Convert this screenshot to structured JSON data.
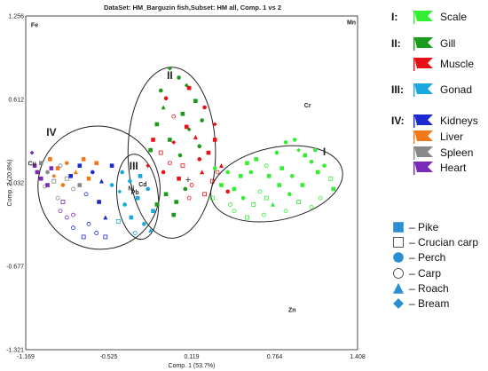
{
  "chart_data": {
    "type": "scatter",
    "title": "DataSet: HM_Barguzin fish,Subset: HM all, Comp. 1 vs 2",
    "xlabel": "Comp. 1 (53.7%)",
    "ylabel": "Comp. 2 (20.8%)",
    "xlim": [
      -1.169,
      1.408
    ],
    "ylim": [
      -1.321,
      1.256
    ],
    "x_ticks": [
      "-1.169",
      "-0.525",
      "0.119",
      "0.764",
      "1.408"
    ],
    "y_ticks": [
      "1.256",
      "0.612",
      "-0.032",
      "-0.677",
      "-1.321"
    ],
    "grid": false,
    "origin_marker": "+",
    "variables": [
      {
        "name": "Fe",
        "x": -1.1,
        "y": 1.17
      },
      {
        "name": "Mn",
        "x": 1.36,
        "y": 1.19
      },
      {
        "name": "Cr",
        "x": 1.02,
        "y": 0.55
      },
      {
        "name": "Cu",
        "x": -1.12,
        "y": 0.1
      },
      {
        "name": "Ni",
        "x": -0.35,
        "y": -0.09
      },
      {
        "name": "Pb",
        "x": -0.32,
        "y": -0.12
      },
      {
        "name": "Cd",
        "x": -0.26,
        "y": -0.06
      },
      {
        "name": "Zn",
        "x": 0.9,
        "y": -1.03
      }
    ],
    "clusters": [
      {
        "label": "I",
        "cx": 0.78,
        "cy": -0.04,
        "rx": 0.52,
        "ry": 0.28,
        "rot": -12,
        "lx": 1.15,
        "ly": 0.18
      },
      {
        "label": "II",
        "cx": -0.035,
        "cy": 0.2,
        "rx": 0.34,
        "ry": 0.66,
        "rot": 0,
        "lx": -0.05,
        "ly": 0.77
      },
      {
        "label": "III",
        "cx": -0.3,
        "cy": -0.14,
        "rx": 0.16,
        "ry": 0.33,
        "rot": -6,
        "lx": -0.33,
        "ly": 0.07
      },
      {
        "label": "IV",
        "cx": -0.6,
        "cy": -0.07,
        "rx": 0.47,
        "ry": 0.48,
        "rot": -35,
        "lx": -0.97,
        "ly": 0.33
      }
    ],
    "legend": {
      "groups": [
        {
          "roman": "I:",
          "items": [
            {
              "name": "Scale",
              "color": "#33ee33"
            }
          ]
        },
        {
          "roman": "II:",
          "items": [
            {
              "name": "Gill",
              "color": "#1a9a1a"
            },
            {
              "name": "Muscle",
              "color": "#e8111a"
            }
          ]
        },
        {
          "roman": "III:",
          "items": [
            {
              "name": "Gonad",
              "color": "#1aa8dd"
            }
          ]
        },
        {
          "roman": "IV:",
          "items": [
            {
              "name": "Kidneys",
              "color": "#1a2ad0"
            },
            {
              "name": "Liver",
              "color": "#f07818"
            },
            {
              "name": "Spleen",
              "color": "#888888"
            },
            {
              "name": "Heart",
              "color": "#7a2ab8"
            }
          ]
        }
      ],
      "species": [
        {
          "name": "– Pike",
          "shape": "square",
          "filled": true
        },
        {
          "name": "– Crucian carp",
          "shape": "square",
          "filled": false
        },
        {
          "name": "– Perch",
          "shape": "circle",
          "filled": true
        },
        {
          "name": "– Carp",
          "shape": "circle",
          "filled": false
        },
        {
          "name": "– Roach",
          "shape": "triangle",
          "filled": true
        },
        {
          "name": "– Bream",
          "shape": "diamond",
          "filled": true
        }
      ],
      "species_color": "#2a8ed0"
    },
    "series": [
      {
        "tissue": "Scale",
        "color": "#33ee33",
        "points": [
          [
            0.55,
            0.12,
            "s",
            1
          ],
          [
            0.62,
            0.15,
            "s",
            1
          ],
          [
            0.7,
            0.1,
            "c",
            0
          ],
          [
            0.78,
            0.2,
            "c",
            1
          ],
          [
            0.85,
            0.28,
            "c",
            1
          ],
          [
            0.92,
            0.3,
            "c",
            1
          ],
          [
            0.95,
            0.22,
            "d",
            1
          ],
          [
            1.0,
            0.18,
            "s",
            1
          ],
          [
            1.05,
            0.13,
            "c",
            1
          ],
          [
            1.1,
            0.05,
            "s",
            1
          ],
          [
            1.15,
            0.1,
            "c",
            1
          ],
          [
            1.2,
            0.0,
            "s",
            0
          ],
          [
            1.22,
            -0.08,
            "s",
            1
          ],
          [
            1.12,
            -0.15,
            "c",
            0
          ],
          [
            1.05,
            -0.22,
            "c",
            0
          ],
          [
            0.95,
            -0.18,
            "s",
            0
          ],
          [
            0.88,
            -0.12,
            "c",
            1
          ],
          [
            0.8,
            -0.05,
            "s",
            1
          ],
          [
            0.72,
            0.02,
            "s",
            1
          ],
          [
            0.65,
            -0.1,
            "c",
            0
          ],
          [
            0.6,
            -0.2,
            "s",
            0
          ],
          [
            0.52,
            -0.15,
            "c",
            1
          ],
          [
            0.45,
            -0.08,
            "s",
            1
          ],
          [
            0.4,
            0.05,
            "c",
            1
          ],
          [
            0.35,
            -0.05,
            "s",
            1
          ],
          [
            0.3,
            0.08,
            "c",
            1
          ],
          [
            0.28,
            -0.15,
            "s",
            0
          ],
          [
            0.45,
            -0.25,
            "c",
            0
          ],
          [
            0.55,
            -0.3,
            "s",
            0
          ],
          [
            0.68,
            -0.28,
            "c",
            0
          ],
          [
            0.75,
            -0.2,
            "t",
            1
          ],
          [
            0.82,
            0.08,
            "s",
            1
          ],
          [
            0.9,
            0.02,
            "c",
            1
          ],
          [
            0.98,
            -0.05,
            "s",
            1
          ],
          [
            1.08,
            0.22,
            "c",
            1
          ],
          [
            0.58,
            0.05,
            "c",
            1
          ],
          [
            0.5,
            0.02,
            "s",
            1
          ],
          [
            0.7,
            -0.15,
            "s",
            0
          ],
          [
            0.85,
            -0.25,
            "c",
            0
          ],
          [
            0.42,
            -0.2,
            "c",
            0
          ]
        ]
      },
      {
        "tissue": "Gill",
        "color": "#1a9a1a",
        "points": [
          [
            -0.05,
            0.85,
            "d",
            1
          ],
          [
            0.02,
            0.78,
            "c",
            1
          ],
          [
            0.08,
            0.72,
            "d",
            1
          ],
          [
            -0.12,
            0.68,
            "c",
            1
          ],
          [
            0.15,
            0.6,
            "s",
            1
          ],
          [
            -0.1,
            0.55,
            "t",
            1
          ],
          [
            0.05,
            0.5,
            "s",
            1
          ],
          [
            0.2,
            0.45,
            "c",
            1
          ],
          [
            -0.15,
            0.42,
            "s",
            1
          ],
          [
            0.1,
            0.38,
            "d",
            1
          ],
          [
            -0.05,
            0.3,
            "s",
            1
          ],
          [
            0.18,
            0.25,
            "c",
            1
          ],
          [
            -0.2,
            0.22,
            "s",
            1
          ],
          [
            0.03,
            0.18,
            "c",
            1
          ],
          [
            -0.08,
            -0.12,
            "s",
            1
          ],
          [
            -0.15,
            -0.2,
            "s",
            1
          ],
          [
            0.0,
            -0.18,
            "s",
            1
          ],
          [
            0.07,
            -0.08,
            "c",
            1
          ],
          [
            -0.02,
            -0.28,
            "s",
            1
          ]
        ]
      },
      {
        "tissue": "Muscle",
        "color": "#e8111a",
        "points": [
          [
            0.1,
            0.7,
            "s",
            1
          ],
          [
            -0.08,
            0.62,
            "c",
            1
          ],
          [
            0.22,
            0.55,
            "c",
            1
          ],
          [
            0.3,
            0.42,
            "d",
            1
          ],
          [
            0.15,
            0.32,
            "t",
            1
          ],
          [
            -0.02,
            0.28,
            "d",
            1
          ],
          [
            -0.18,
            0.3,
            "s",
            1
          ],
          [
            0.25,
            0.2,
            "s",
            1
          ],
          [
            0.35,
            0.1,
            "t",
            1
          ],
          [
            0.05,
            0.1,
            "s",
            0
          ],
          [
            -0.1,
            0.05,
            "c",
            1
          ],
          [
            0.2,
            0.05,
            "t",
            1
          ],
          [
            0.28,
            -0.02,
            "s",
            0
          ],
          [
            0.12,
            -0.05,
            "c",
            0
          ],
          [
            0.02,
            0.0,
            "s",
            1
          ],
          [
            -0.05,
            0.12,
            "c",
            0
          ],
          [
            0.1,
            -0.15,
            "c",
            0
          ],
          [
            0.22,
            -0.12,
            "s",
            0
          ],
          [
            0.32,
            0.05,
            "c",
            0
          ],
          [
            0.4,
            -0.1,
            "c",
            1
          ],
          [
            -0.22,
            0.1,
            "d",
            1
          ],
          [
            -0.12,
            0.2,
            "s",
            0
          ],
          [
            0.18,
            0.15,
            "c",
            1
          ],
          [
            0.08,
            0.4,
            "s",
            1
          ],
          [
            0.3,
            0.3,
            "s",
            1
          ],
          [
            -0.02,
            0.48,
            "c",
            0
          ]
        ]
      },
      {
        "tissue": "Gonad",
        "color": "#1aa8dd",
        "points": [
          [
            -0.42,
            0.05,
            "c",
            1
          ],
          [
            -0.36,
            -0.02,
            "c",
            1
          ],
          [
            -0.28,
            0.02,
            "s",
            1
          ],
          [
            -0.22,
            -0.08,
            "c",
            1
          ],
          [
            -0.3,
            -0.15,
            "s",
            1
          ],
          [
            -0.4,
            -0.2,
            "c",
            1
          ],
          [
            -0.35,
            -0.3,
            "s",
            1
          ],
          [
            -0.25,
            -0.35,
            "c",
            1
          ],
          [
            -0.18,
            -0.25,
            "s",
            1
          ],
          [
            -0.44,
            -0.1,
            "d",
            1
          ],
          [
            -0.32,
            -0.42,
            "c",
            0
          ],
          [
            -0.2,
            -0.4,
            "t",
            1
          ],
          [
            -0.45,
            -0.33,
            "s",
            0
          ],
          [
            -0.5,
            -0.05,
            "c",
            1
          ]
        ]
      },
      {
        "tissue": "Kidneys",
        "color": "#1a2ad0",
        "points": [
          [
            -0.75,
            0.1,
            "s",
            1
          ],
          [
            -0.65,
            0.05,
            "c",
            1
          ],
          [
            -0.58,
            -0.02,
            "t",
            1
          ],
          [
            -0.82,
            0.02,
            "s",
            1
          ],
          [
            -0.7,
            -0.12,
            "c",
            0
          ],
          [
            -0.6,
            -0.18,
            "s",
            1
          ],
          [
            -0.55,
            -0.3,
            "t",
            1
          ],
          [
            -0.68,
            -0.35,
            "c",
            0
          ],
          [
            -0.8,
            -0.38,
            "c",
            0
          ],
          [
            -0.72,
            -0.45,
            "s",
            0
          ],
          [
            -0.62,
            -0.42,
            "c",
            0
          ],
          [
            -0.55,
            -0.45,
            "s",
            0
          ],
          [
            -0.5,
            0.1,
            "s",
            1
          ]
        ]
      },
      {
        "tissue": "Liver",
        "color": "#f07818",
        "points": [
          [
            -0.98,
            0.15,
            "s",
            1
          ],
          [
            -0.92,
            0.08,
            "s",
            1
          ],
          [
            -0.85,
            0.12,
            "c",
            1
          ],
          [
            -0.78,
            0.05,
            "t",
            1
          ],
          [
            -0.72,
            0.15,
            "s",
            1
          ],
          [
            -0.88,
            -0.05,
            "c",
            1
          ],
          [
            -0.62,
            0.12,
            "s",
            1
          ],
          [
            -0.68,
            0.0,
            "s",
            1
          ],
          [
            -0.95,
            0.02,
            "d",
            1
          ]
        ]
      },
      {
        "tissue": "Spleen",
        "color": "#888888",
        "points": [
          [
            -1.05,
            0.12,
            "s",
            1
          ],
          [
            -1.0,
            0.05,
            "c",
            1
          ],
          [
            -0.95,
            -0.02,
            "s",
            0
          ],
          [
            -0.9,
            0.1,
            "c",
            0
          ],
          [
            -0.85,
            0.0,
            "s",
            0
          ],
          [
            -0.8,
            -0.08,
            "c",
            0
          ],
          [
            -1.02,
            -0.06,
            "c",
            0
          ],
          [
            -0.75,
            -0.05,
            "s",
            1
          ],
          [
            -0.92,
            -0.15,
            "c",
            0
          ]
        ]
      },
      {
        "tissue": "Heart",
        "color": "#7a2ab8",
        "points": [
          [
            -1.12,
            0.2,
            "d",
            1
          ],
          [
            -1.08,
            0.05,
            "s",
            1
          ],
          [
            -1.05,
            0.0,
            "s",
            1
          ],
          [
            -1.0,
            -0.05,
            "s",
            1
          ],
          [
            -0.97,
            0.08,
            "s",
            1
          ],
          [
            -0.9,
            -0.25,
            "c",
            0
          ],
          [
            -0.85,
            -0.3,
            "c",
            0
          ],
          [
            -0.8,
            -0.28,
            "c",
            0
          ],
          [
            -0.88,
            -0.18,
            "s",
            0
          ],
          [
            -1.1,
            0.1,
            "s",
            1
          ]
        ]
      }
    ]
  }
}
